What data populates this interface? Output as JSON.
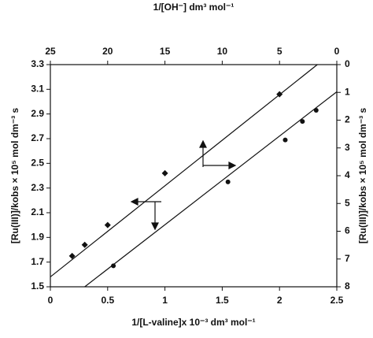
{
  "chart_data": {
    "type": "scatter",
    "x_label": "1/[L-valine]x 10⁻³ dm³ mol⁻¹",
    "y_label": "[Ru(III)]/kobs × 10⁵ mol dm⁻³ s",
    "x2_label": "1/[OH⁻] dm³ mol⁻¹",
    "y2_label": "[Ru(III)]/kobs × 10⁵ mol dm⁻³ s",
    "xlim": [
      0,
      2.5
    ],
    "xticks": [
      0,
      0.5,
      1,
      1.5,
      2,
      2.5
    ],
    "ylim": [
      1.5,
      3.3
    ],
    "yticks": [
      1.5,
      1.7,
      1.9,
      2.1,
      2.3,
      2.5,
      2.7,
      2.9,
      3.1,
      3.3
    ],
    "x2lim": [
      25,
      0
    ],
    "x2ticks": [
      25,
      20,
      15,
      10,
      5,
      0
    ],
    "y2lim": [
      8,
      0
    ],
    "y2ticks": [
      0,
      1,
      2,
      3,
      4,
      5,
      6,
      7,
      8
    ],
    "series": [
      {
        "marker": "diamond",
        "color": "#111111",
        "x": [
          0.19,
          0.3,
          0.5,
          1.0,
          2.0
        ],
        "values": [
          1.75,
          1.84,
          2.0,
          2.42,
          3.06
        ]
      },
      {
        "marker": "circle",
        "color": "#111111",
        "x": [
          0.55,
          1.55,
          2.05,
          2.2,
          2.32
        ],
        "values": [
          1.67,
          2.35,
          2.69,
          2.84,
          2.93
        ]
      }
    ],
    "fit_lines": [
      {
        "color": "#111111",
        "x": [
          0,
          2.33
        ],
        "values": [
          1.58,
          3.3
        ]
      },
      {
        "color": "#111111",
        "x": [
          0.3,
          2.5
        ],
        "values": [
          1.5,
          3.08
        ]
      }
    ]
  }
}
